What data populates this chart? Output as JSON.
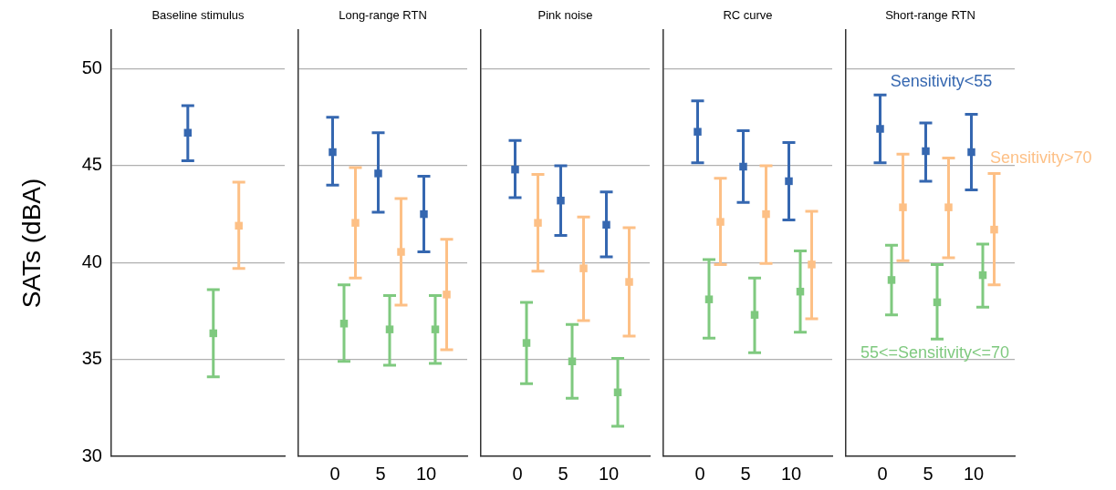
{
  "chart_data": [
    {
      "type": "scatter",
      "title": "Baseline stimulus",
      "ylabel": "SATs (dBA)",
      "categories": [
        null
      ],
      "ylim": [
        30,
        52
      ],
      "yticks": [
        30,
        35,
        40,
        45,
        50
      ],
      "grid": "y",
      "legend": false,
      "marker": "square",
      "tick_labels": "y",
      "series": [
        {
          "color": "#3567b0",
          "values": [
            46.7
          ],
          "errors": [
            [
              45.25,
              48.1
            ]
          ]
        },
        {
          "color": "#fdc086",
          "values": [
            41.9
          ],
          "errors": [
            [
              39.7,
              44.15
            ]
          ]
        },
        {
          "color": "#7fc97f",
          "values": [
            36.35
          ],
          "errors": [
            [
              34.1,
              38.6
            ]
          ]
        }
      ]
    },
    {
      "type": "scatter",
      "title": "Long-range RTN",
      "categories": [
        "0",
        "5",
        "10"
      ],
      "ylim": [
        30,
        52
      ],
      "yticks": [
        30,
        35,
        40,
        45,
        50
      ],
      "grid": "y",
      "legend": false,
      "marker": "square",
      "tick_labels": "x",
      "series": [
        {
          "color": "#3567b0",
          "values": [
            45.7,
            44.6,
            42.5
          ],
          "errors": [
            [
              44.0,
              47.5
            ],
            [
              42.6,
              46.7
            ],
            [
              40.55,
              44.45
            ]
          ]
        },
        {
          "color": "#fdc086",
          "values": [
            42.05,
            40.55,
            38.35
          ],
          "errors": [
            [
              39.2,
              44.9
            ],
            [
              37.8,
              43.3
            ],
            [
              35.5,
              41.2
            ]
          ]
        },
        {
          "color": "#7fc97f",
          "values": [
            36.85,
            36.55,
            36.55
          ],
          "errors": [
            [
              34.9,
              38.85
            ],
            [
              34.7,
              38.3
            ],
            [
              34.8,
              38.3
            ]
          ]
        }
      ]
    },
    {
      "type": "scatter",
      "title": "Pink noise",
      "categories": [
        "0",
        "5",
        "10"
      ],
      "ylim": [
        30,
        52
      ],
      "yticks": [
        30,
        35,
        40,
        45,
        50
      ],
      "grid": "y",
      "legend": false,
      "marker": "square",
      "tick_labels": "x",
      "series": [
        {
          "color": "#3567b0",
          "values": [
            44.8,
            43.2,
            41.95
          ],
          "errors": [
            [
              43.35,
              46.3
            ],
            [
              41.4,
              45.0
            ],
            [
              40.3,
              43.65
            ]
          ]
        },
        {
          "color": "#fdc086",
          "values": [
            42.05,
            39.7,
            39.0
          ],
          "errors": [
            [
              39.55,
              44.55
            ],
            [
              37.0,
              42.35
            ],
            [
              36.2,
              41.8
            ]
          ]
        },
        {
          "color": "#7fc97f",
          "values": [
            35.85,
            34.9,
            33.3
          ],
          "errors": [
            [
              33.75,
              37.95
            ],
            [
              33.0,
              36.8
            ],
            [
              31.55,
              35.05
            ]
          ]
        }
      ]
    },
    {
      "type": "scatter",
      "title": "RC curve",
      "categories": [
        "0",
        "5",
        "10"
      ],
      "ylim": [
        30,
        52
      ],
      "yticks": [
        30,
        35,
        40,
        45,
        50
      ],
      "grid": "y",
      "legend": false,
      "marker": "square",
      "tick_labels": "x",
      "series": [
        {
          "color": "#3567b0",
          "values": [
            46.75,
            44.95,
            44.2
          ],
          "errors": [
            [
              45.15,
              48.35
            ],
            [
              43.1,
              46.8
            ],
            [
              42.2,
              46.2
            ]
          ]
        },
        {
          "color": "#fdc086",
          "values": [
            42.1,
            42.5,
            39.9
          ],
          "errors": [
            [
              39.9,
              44.35
            ],
            [
              39.95,
              45.0
            ],
            [
              37.1,
              42.65
            ]
          ]
        },
        {
          "color": "#7fc97f",
          "values": [
            38.1,
            37.3,
            38.5
          ],
          "errors": [
            [
              36.1,
              40.15
            ],
            [
              35.35,
              39.2
            ],
            [
              36.4,
              40.6
            ]
          ]
        }
      ]
    },
    {
      "type": "scatter",
      "title": "Short-range RTN",
      "categories": [
        "0",
        "5",
        "10"
      ],
      "ylim": [
        30,
        52
      ],
      "yticks": [
        30,
        35,
        40,
        45,
        50
      ],
      "grid": "y",
      "legend": false,
      "marker": "square",
      "tick_labels": "x",
      "series": [
        {
          "name": "Sensitivity<55",
          "color": "#3567b0",
          "values": [
            46.9,
            45.75,
            45.7
          ],
          "errors": [
            [
              45.15,
              48.65
            ],
            [
              44.2,
              47.2
            ],
            [
              43.75,
              47.65
            ]
          ]
        },
        {
          "name": "Sensitivity>70",
          "color": "#fdc086",
          "values": [
            42.85,
            42.85,
            41.7
          ],
          "errors": [
            [
              40.1,
              45.6
            ],
            [
              40.25,
              45.4
            ],
            [
              38.85,
              44.6
            ]
          ]
        },
        {
          "name": "55<=Sensitivity<=70",
          "color": "#7fc97f",
          "values": [
            39.1,
            37.95,
            39.35
          ],
          "errors": [
            [
              37.3,
              40.9
            ],
            [
              36.05,
              39.9
            ],
            [
              37.7,
              40.95
            ]
          ]
        }
      ]
    }
  ]
}
